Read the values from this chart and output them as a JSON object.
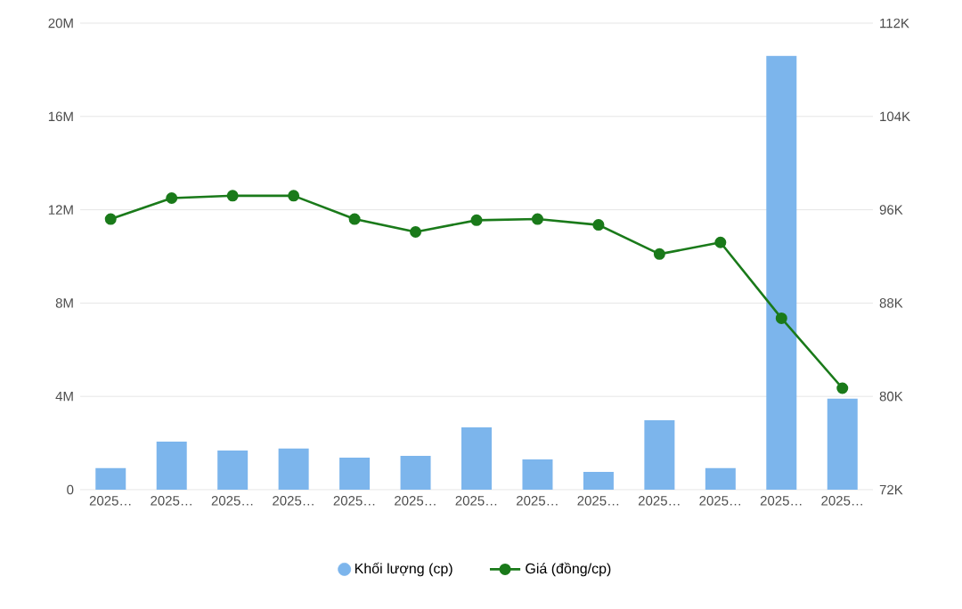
{
  "chart_data": {
    "type": "bar",
    "categories": [
      "2025…",
      "2025…",
      "2025…",
      "2025…",
      "2025…",
      "2025…",
      "2025…",
      "2025…",
      "2025…",
      "2025…",
      "2025…",
      "2025…",
      "2025…"
    ],
    "series": [
      {
        "name": "Khối lượng (cp)",
        "color": "#7cb5ec",
        "values": [
          920000,
          2060000,
          1680000,
          1760000,
          1370000,
          1450000,
          2670000,
          1300000,
          760000,
          2980000,
          920000,
          18600000,
          3900000
        ]
      },
      {
        "name": "Giá (đồng/cp)",
        "type": "line",
        "axis": "y2",
        "color": "#1a7a1a",
        "values": [
          95200,
          97000,
          97200,
          97200,
          95200,
          94100,
          95100,
          95200,
          94700,
          92200,
          93200,
          86700,
          80700
        ]
      }
    ],
    "ylim": [
      0,
      20000000
    ],
    "yticks": [
      0,
      {
        "value": 4000000,
        "label": "4M"
      },
      {
        "value": 8000000,
        "label": "8M"
      },
      {
        "value": 12000000,
        "label": "12M"
      },
      {
        "value": 16000000,
        "label": "16M"
      },
      {
        "value": 20000000,
        "label": "20M"
      }
    ],
    "y2lim": [
      72000,
      112000
    ],
    "y2ticks": [
      {
        "value": 72000,
        "label": "72K"
      },
      {
        "value": 80000,
        "label": "80K"
      },
      {
        "value": 88000,
        "label": "88K"
      },
      {
        "value": 96000,
        "label": "96K"
      },
      {
        "value": 104000,
        "label": "104K"
      },
      {
        "value": 112000,
        "label": "112K"
      }
    ],
    "grid": "y",
    "legend": "bottom",
    "marker": "circle"
  }
}
